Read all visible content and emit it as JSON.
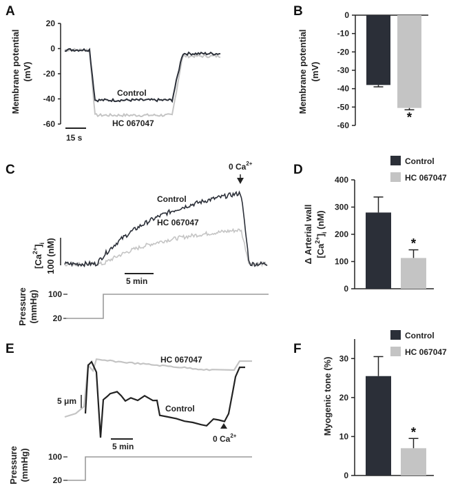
{
  "colors": {
    "control": "#2b2f38",
    "hc": "#c4c4c4",
    "axis": "#222222",
    "pressure": "#9a9a9a"
  },
  "panels": {
    "A": {
      "letter": "A",
      "ylabel_1": "Membrane potential",
      "ylabel_2": "(mV)",
      "control_label": "Control",
      "hc_label": "HC 067047",
      "scale_label": "15 s"
    },
    "B": {
      "letter": "B",
      "ylabel_1": "Membrane potential",
      "ylabel_2": "(mV)",
      "star": "*"
    },
    "C": {
      "letter": "C",
      "ca_label_1": "[Ca",
      "ca_label_sup": "2+",
      "ca_label_2": "]",
      "ca_label_sub": "i",
      "scale_value": "100 (nM)",
      "control_label": "Control",
      "hc_label": "HC 067047",
      "scale_label": "5 min",
      "zero_ca": "0 Ca",
      "zero_ca_sup": "2+",
      "pressure_label_1": "Pressure",
      "pressure_label_2": "(mmHg)"
    },
    "D": {
      "letter": "D",
      "ylabel_1": "Δ Arterial wall",
      "ylabel_2": "[Ca",
      "ylabel_sup": "2+",
      "ylabel_3": "]",
      "ylabel_sub": "i",
      "ylabel_4": " (nM)",
      "star": "*"
    },
    "E": {
      "letter": "E",
      "scale_value": "5 μm",
      "control_label": "Control",
      "hc_label": "HC 067047",
      "scale_label": "5 min",
      "zero_ca": "0 Ca",
      "zero_ca_sup": "2+",
      "pressure_label_1": "Pressure",
      "pressure_label_2": "(mmHg)"
    },
    "F": {
      "letter": "F",
      "ylabel": "Myogenic tone (%)",
      "star": "*"
    }
  },
  "legend": {
    "control": "Control",
    "hc": "HC 067047"
  },
  "chart_data": [
    {
      "panel": "A",
      "type": "line",
      "ylabel": "Membrane potential (mV)",
      "ylim": [
        -60,
        20
      ],
      "yticks": [
        20,
        0,
        -20,
        -40,
        -60
      ],
      "series": [
        {
          "name": "Control",
          "approx_levels_mV": {
            "baseline": -1,
            "plateau": -41,
            "recovery": -4
          }
        },
        {
          "name": "HC 067047",
          "approx_levels_mV": {
            "baseline": -1,
            "plateau": -53,
            "recovery": -6
          }
        }
      ]
    },
    {
      "panel": "B",
      "type": "bar",
      "ylabel": "Membrane potential (mV)",
      "ylim": [
        -60,
        0
      ],
      "yticks": [
        0,
        -10,
        -20,
        -30,
        -40,
        -50,
        -60
      ],
      "categories": [
        "Control",
        "HC 067047"
      ],
      "values": [
        -38,
        -50.5
      ],
      "errors": [
        1,
        1
      ],
      "annotations": [
        "",
        "*"
      ]
    },
    {
      "panel": "C",
      "type": "line",
      "series": [
        {
          "name": "Control",
          "approx_levels_nM": {
            "baseline": 0,
            "peak": 250
          }
        },
        {
          "name": "HC 067047",
          "approx_levels_nM": {
            "baseline": 0,
            "peak": 120
          }
        },
        {
          "name": "Pressure",
          "levels_mmHg": [
            20,
            100
          ]
        }
      ],
      "pressure_ticks": [
        100,
        20
      ]
    },
    {
      "panel": "D",
      "type": "bar",
      "ylabel": "Δ Arterial wall [Ca2+]i (nM)",
      "ylim": [
        0,
        400
      ],
      "yticks": [
        0,
        100,
        200,
        300,
        400
      ],
      "categories": [
        "Control",
        "HC 067047"
      ],
      "values": [
        280,
        113
      ],
      "errors": [
        57,
        30
      ],
      "annotations": [
        "",
        "*"
      ]
    },
    {
      "panel": "E",
      "type": "line",
      "series": [
        {
          "name": "Control"
        },
        {
          "name": "HC 067047"
        },
        {
          "name": "Pressure",
          "levels_mmHg": [
            20,
            100
          ]
        }
      ],
      "pressure_ticks": [
        100,
        20
      ]
    },
    {
      "panel": "F",
      "type": "bar",
      "ylabel": "Myogenic tone (%)",
      "ylim": [
        0,
        35
      ],
      "yticks": [
        0,
        10,
        20,
        30
      ],
      "categories": [
        "Control",
        "HC 067047"
      ],
      "values": [
        25.5,
        7
      ],
      "errors": [
        5,
        2.5
      ],
      "annotations": [
        "",
        "*"
      ]
    }
  ]
}
